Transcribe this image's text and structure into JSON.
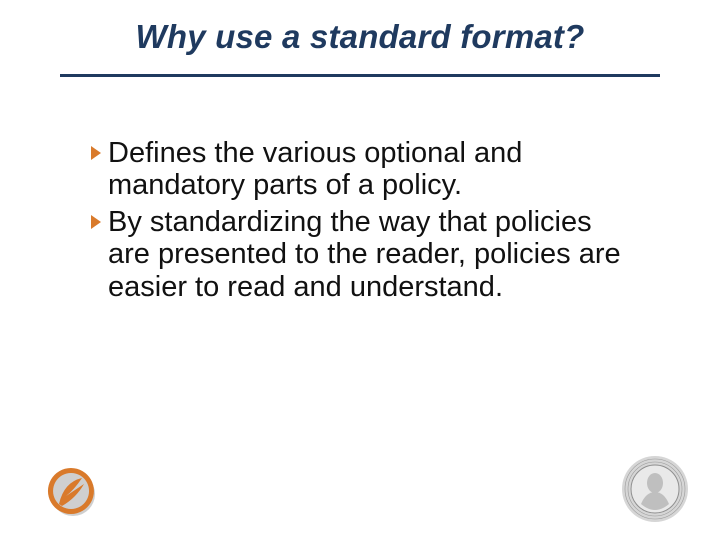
{
  "slide": {
    "title": "Why use a standard format?",
    "title_fontsize": 33,
    "title_color": "#1f3a5f",
    "rule_color": "#1f3a5f",
    "rule_thickness": 3,
    "background_color": "#ffffff",
    "bullets": [
      {
        "text": "Defines the various optional and mandatory parts of a policy."
      },
      {
        "text": "By standardizing the way that policies are presented to the reader, policies are easier to read and understand."
      }
    ],
    "bullet_fontsize": 29,
    "bullet_text_color": "#111111",
    "bullet_marker_color": "#d97a2b",
    "logo_left": {
      "outer_color": "#d97a2b",
      "inner_color": "#ffffff",
      "shadow_color": "#cfcfcf"
    },
    "seal_right": {
      "ring_color": "#d6d6d6",
      "ring_text_color": "#9a9a9a",
      "portrait_fill": "#bfbfbf",
      "portrait_stroke": "#8f8f8f",
      "center_color": "#e9e9e9"
    }
  }
}
